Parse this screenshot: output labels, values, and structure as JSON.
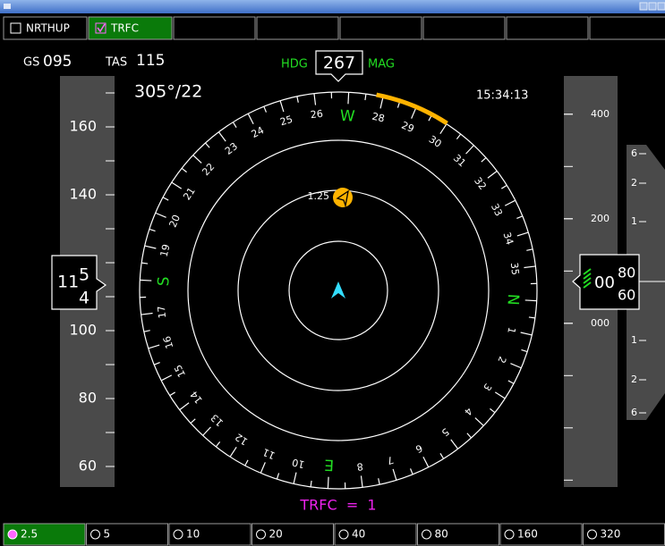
{
  "toolbar": [
    {
      "label": "NRTHUP",
      "checked": false
    },
    {
      "label": "TRFC",
      "checked": true
    }
  ],
  "range_buttons": [
    {
      "label": "2.5",
      "selected": true
    },
    {
      "label": "5",
      "selected": false
    },
    {
      "label": "10",
      "selected": false
    },
    {
      "label": "20",
      "selected": false
    },
    {
      "label": "40",
      "selected": false
    },
    {
      "label": "80",
      "selected": false
    },
    {
      "label": "160",
      "selected": false
    },
    {
      "label": "320",
      "selected": false
    }
  ],
  "nav": {
    "gs_label": "GS",
    "gs": "095",
    "tas_label": "TAS",
    "tas": "115",
    "hdg_label": "HDG",
    "heading": 267,
    "mag_label": "MAG",
    "wind": "305°/22",
    "time": "15:34:13",
    "traffic_summary": "TRFC  =  1"
  },
  "compass_labels": [
    "1",
    "2",
    "3",
    "4",
    "5",
    "6",
    "7",
    "8",
    "E",
    "10",
    "11",
    "12",
    "13",
    "14",
    "15",
    "16",
    "17",
    "S",
    "19",
    "20",
    "21",
    "22",
    "23",
    "24",
    "25",
    "26",
    "W",
    "28",
    "29",
    "30",
    "31",
    "32",
    "33",
    "34",
    "35",
    "N"
  ],
  "traffic": {
    "label": "1.25"
  },
  "speed_tape": {
    "value": 115,
    "ticks": [
      160,
      140,
      100,
      80,
      60
    ],
    "box_main": "11",
    "box_drum": [
      "5",
      "4"
    ]
  },
  "altitude_tape": {
    "value": 80,
    "ticks": [
      400,
      200,
      {
        "value": 0,
        "label": "000"
      }
    ],
    "box_main": "00",
    "box_drum": [
      "80",
      "60"
    ]
  },
  "vsi_labels": [
    "6",
    "2",
    "1",
    "1",
    "2",
    "6"
  ]
}
